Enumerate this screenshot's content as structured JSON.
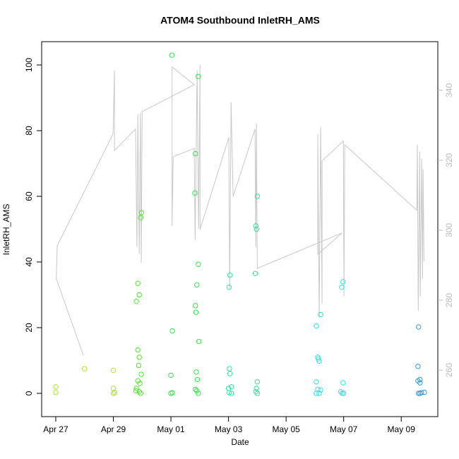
{
  "chart_data": {
    "type": "scatter",
    "title": "ATOM4 Southbound InletRH_AMS",
    "x_label": "Date",
    "y_label": "InletRH_AMS",
    "xlim": [
      -0.49,
      13.27
    ],
    "ylim": [
      -7.1,
      107.1
    ],
    "y2lim": [
      246.7,
      353.9
    ],
    "xticks": [
      {
        "value": 0,
        "label": "Apr 27"
      },
      {
        "value": 2,
        "label": "Apr 29"
      },
      {
        "value": 4,
        "label": "May 01"
      },
      {
        "value": 6,
        "label": "May 03"
      },
      {
        "value": 8,
        "label": "May 05"
      },
      {
        "value": 10,
        "label": "May 07"
      },
      {
        "value": 12,
        "label": "May 09"
      }
    ],
    "yticks": [
      0,
      20,
      40,
      60,
      80,
      100
    ],
    "y2ticks": [
      260,
      280,
      300,
      320,
      340
    ],
    "series": [
      {
        "color": "#a6e62e",
        "x": [
          0,
          0,
          1.0,
          2.0,
          2.0,
          2.05,
          2.0
        ],
        "values": [
          2,
          0.3,
          7.5,
          7,
          1.5,
          0.3,
          0
        ]
      },
      {
        "color": "#4de62e",
        "x": [
          2.8,
          2.85,
          2.9,
          2.95,
          2.98,
          2.85,
          2.9,
          2.88,
          2.97,
          2.8,
          2.85,
          2.9,
          2.95,
          2.78,
          2.92
        ],
        "values": [
          28,
          33.5,
          30,
          53.5,
          55,
          13.2,
          11,
          8.5,
          5.8,
          1.5,
          3.8,
          0.5,
          0,
          0.8,
          3
        ]
      },
      {
        "color": "#2ee64a",
        "x": [
          4.03,
          4.05,
          4.0,
          4.0,
          4.05,
          4.85,
          4.83,
          4.95,
          4.95,
          4.9,
          4.85,
          4.87,
          4.97,
          4.88,
          4.92,
          4.85,
          4.9,
          4.95
        ],
        "values": [
          103,
          19,
          5.5,
          0,
          0.2,
          73,
          61,
          96.5,
          39.3,
          33,
          26.7,
          24.7,
          15.8,
          6.5,
          4.2,
          1.2,
          0.8,
          0
        ]
      },
      {
        "color": "#2ee6a0",
        "x": [
          6.05,
          6.02,
          6.03,
          6.05,
          6.1,
          6.0,
          6.02,
          6.1,
          6.95,
          6.97,
          7.0,
          6.93,
          7.0,
          6.97,
          6.95,
          7.0
        ],
        "values": [
          36,
          32.3,
          7.5,
          6,
          2,
          1.5,
          0.2,
          0,
          51,
          50,
          60,
          36.5,
          3.5,
          1.5,
          0.5,
          0
        ]
      },
      {
        "color": "#2ee0e6",
        "x": [
          9.05,
          9.2,
          9.1,
          9.12,
          9.15,
          9.05,
          9.1,
          9.2,
          9.05,
          9.15,
          9.93,
          9.98,
          9.98,
          9.9,
          9.95,
          10.0
        ],
        "values": [
          20.5,
          24,
          11,
          10.5,
          9.8,
          3.5,
          1.2,
          1,
          0,
          0,
          32.3,
          34,
          3.2,
          0.5,
          0,
          0
        ]
      },
      {
        "color": "#2e9ae6",
        "x": [
          12.6,
          12.58,
          12.58,
          12.65,
          12.65,
          12.6,
          12.7,
          12.8,
          12.65
        ],
        "values": [
          20.2,
          8.2,
          3.8,
          4.2,
          3.2,
          0,
          0.2,
          0.3,
          0
        ]
      },
      {
        "type": "line",
        "axis": "y2",
        "color": "#c8c8c8",
        "x": [
          0.96,
          0.02,
          0.05,
          1.99,
          2.04,
          2.04,
          2.77,
          2.82,
          2.85,
          2.9,
          2.94,
          2.97,
          3.0,
          4.81,
          4.04,
          4.04,
          4.08,
          4.81,
          4.84,
          4.91,
          4.96,
          5.01,
          5.01,
          6.01,
          6.04,
          6.09,
          6.16,
          6.92,
          6.95,
          6.97,
          7.0,
          9.94,
          9.1,
          9.1,
          9.15,
          9.2,
          9.25,
          9.25,
          9.99,
          10.01,
          10.04,
          12.54,
          12.56,
          12.59,
          12.64,
          12.66,
          12.71,
          12.74,
          12.76,
          12.79
        ],
        "values": [
          264.2,
          286.1,
          295.6,
          327.5,
          345.7,
          322.8,
          328.9,
          295.2,
          333.1,
          293.1,
          333.5,
          290.7,
          333.9,
          341.6,
          346.7,
          301.2,
          321.0,
          323.4,
          297.2,
          345.7,
          300.4,
          347.3,
          300.2,
          326.5,
          283.0,
          336.6,
          309.7,
          328.9,
          295.2,
          330.5,
          289.1,
          299.2,
          293.1,
          327.5,
          275.0,
          329.5,
          279.0,
          319.8,
          325.5,
          281.0,
          324.4,
          305.7,
          324.4,
          277.0,
          322.4,
          281.0,
          320.4,
          286.1,
          317.4,
          291.1
        ]
      }
    ]
  }
}
